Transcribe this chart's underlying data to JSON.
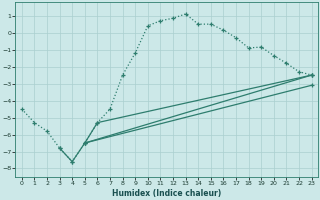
{
  "title": "",
  "xlabel": "Humidex (Indice chaleur)",
  "ylabel": "",
  "background_color": "#cce8e8",
  "grid_color": "#aacfcf",
  "line_color": "#2e7d6e",
  "xlim": [
    -0.5,
    23.5
  ],
  "ylim": [
    -8.5,
    1.8
  ],
  "xticks": [
    0,
    1,
    2,
    3,
    4,
    5,
    6,
    7,
    8,
    9,
    10,
    11,
    12,
    13,
    14,
    15,
    16,
    17,
    18,
    19,
    20,
    21,
    22,
    23
  ],
  "yticks": [
    -8,
    -7,
    -6,
    -5,
    -4,
    -3,
    -2,
    -1,
    0,
    1
  ],
  "series0": {
    "x": [
      0,
      1,
      2,
      3,
      4,
      5,
      6,
      7,
      8,
      9,
      10,
      11,
      12,
      13,
      14,
      15,
      16,
      17,
      18,
      19,
      20,
      21,
      22,
      23
    ],
    "y": [
      -4.5,
      -5.3,
      -5.8,
      -6.8,
      -7.6,
      -6.5,
      -5.3,
      -4.5,
      -2.5,
      -1.2,
      0.4,
      0.7,
      0.85,
      1.1,
      0.5,
      0.5,
      0.15,
      -0.3,
      -0.9,
      -0.85,
      -1.35,
      -1.8,
      -2.3,
      -2.5
    ],
    "linestyle": "dotted"
  },
  "series1": {
    "x": [
      3,
      4,
      5,
      6,
      23
    ],
    "y": [
      -6.8,
      -7.6,
      -6.5,
      -5.3,
      -2.5
    ],
    "linestyle": "solid"
  },
  "series2": {
    "x": [
      5,
      23
    ],
    "y": [
      -6.5,
      -3.1
    ],
    "linestyle": "solid"
  },
  "series3": {
    "x": [
      5,
      23
    ],
    "y": [
      -6.5,
      -2.5
    ],
    "linestyle": "solid"
  }
}
